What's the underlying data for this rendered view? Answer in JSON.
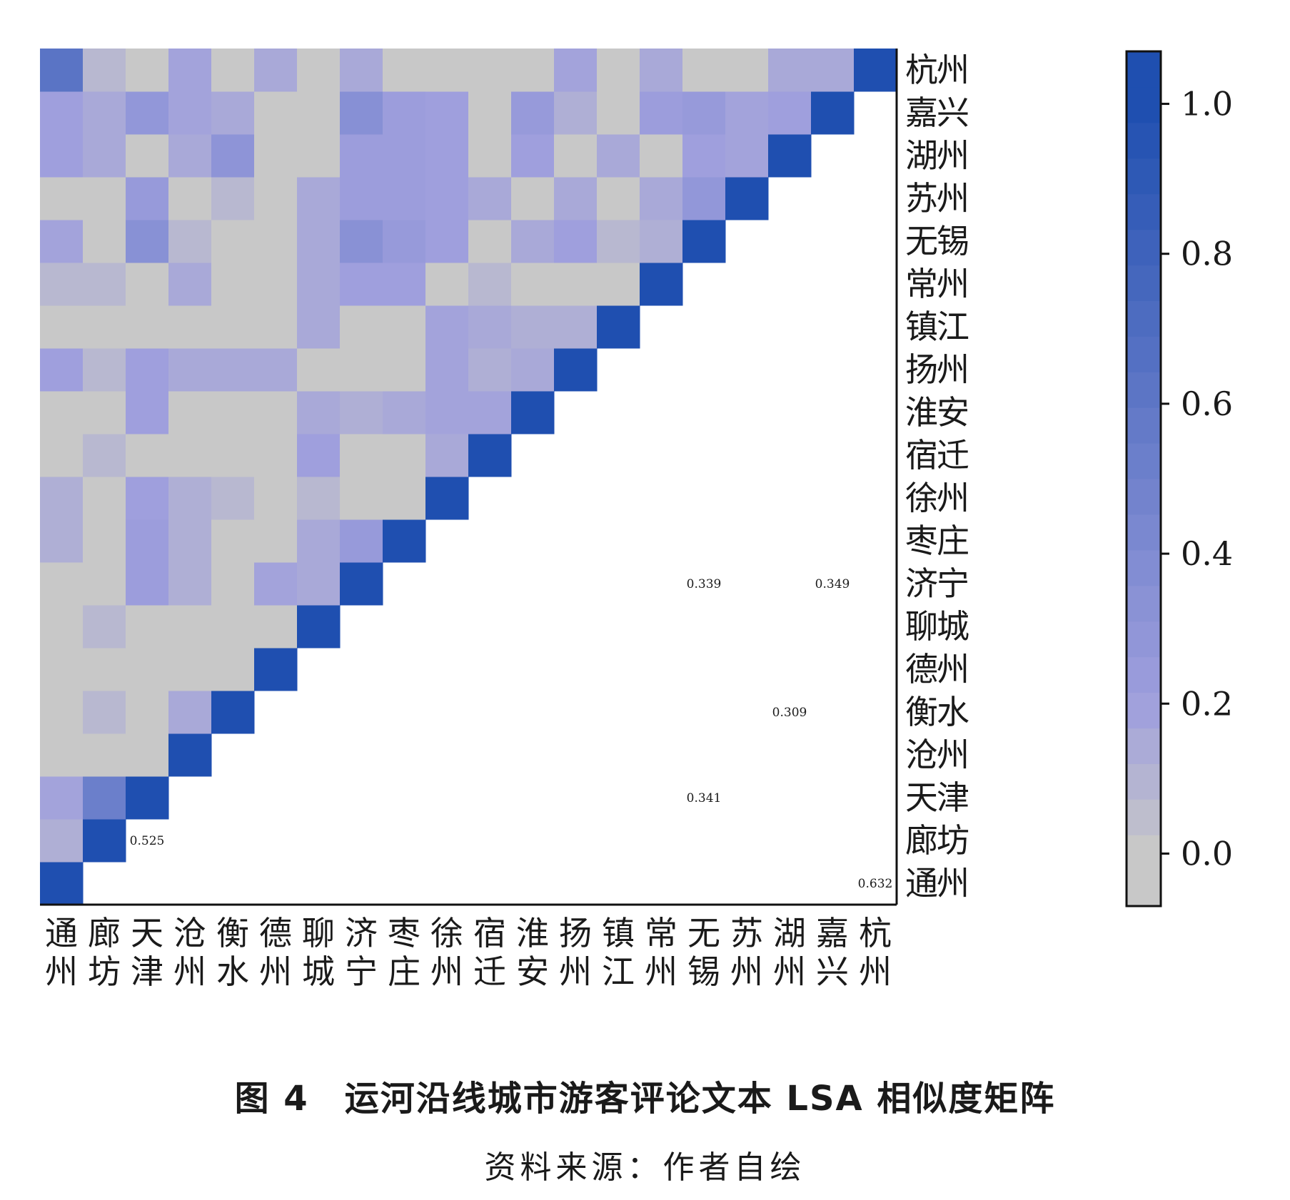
{
  "figure": {
    "title": "图 4　运河沿线城市游客评论文本 LSA 相似度矩阵",
    "source": "资料来源：作者自绘"
  },
  "chart_data": {
    "type": "heatmap",
    "title": "",
    "xlabel": "",
    "ylabel": "",
    "x_categories": [
      "通州",
      "廊坊",
      "天津",
      "沧州",
      "衡水",
      "德州",
      "聊城",
      "济宁",
      "枣庄",
      "徐州",
      "宿迁",
      "淮安",
      "扬州",
      "镇江",
      "常州",
      "无锡",
      "苏州",
      "湖州",
      "嘉兴",
      "杭州"
    ],
    "y_categories_top_to_bottom": [
      "杭州",
      "嘉兴",
      "湖州",
      "苏州",
      "无锡",
      "常州",
      "镇江",
      "扬州",
      "淮安",
      "宿迁",
      "徐州",
      "枣庄",
      "济宁",
      "聊城",
      "德州",
      "衡水",
      "沧州",
      "天津",
      "廊坊",
      "通州"
    ],
    "matrix_lower_triangle": [
      [
        1.0
      ],
      [
        0.12,
        1.0
      ],
      [
        0.18,
        0.525,
        1.0
      ],
      [
        0.0,
        0.0,
        0.0,
        1.0
      ],
      [
        0.0,
        0.08,
        0.0,
        0.15,
        1.0
      ],
      [
        0.0,
        0.0,
        0.0,
        0.0,
        0.0,
        1.0
      ],
      [
        0.0,
        0.08,
        0.0,
        0.0,
        0.0,
        0.0,
        1.0
      ],
      [
        0.0,
        0.0,
        0.22,
        0.12,
        0.0,
        0.18,
        0.15,
        1.0
      ],
      [
        0.12,
        0.0,
        0.22,
        0.12,
        0.0,
        0.0,
        0.15,
        0.25,
        1.0
      ],
      [
        0.12,
        0.0,
        0.2,
        0.12,
        0.08,
        0.0,
        0.08,
        0.0,
        0.0,
        1.0
      ],
      [
        0.0,
        0.08,
        0.0,
        0.0,
        0.0,
        0.0,
        0.2,
        0.0,
        0.0,
        0.15,
        1.0
      ],
      [
        0.0,
        0.0,
        0.2,
        0.0,
        0.0,
        0.0,
        0.15,
        0.12,
        0.15,
        0.18,
        0.18,
        1.0
      ],
      [
        0.2,
        0.08,
        0.2,
        0.15,
        0.15,
        0.15,
        0.0,
        0.0,
        0.0,
        0.18,
        0.12,
        0.15,
        1.0
      ],
      [
        0.0,
        0.0,
        0.0,
        0.0,
        0.0,
        0.0,
        0.15,
        0.0,
        0.0,
        0.18,
        0.15,
        0.12,
        0.12,
        1.0
      ],
      [
        0.08,
        0.08,
        0.0,
        0.15,
        0.0,
        0.0,
        0.15,
        0.2,
        0.2,
        0.0,
        0.08,
        0.0,
        0.0,
        0.0,
        1.0
      ],
      [
        0.18,
        0.0,
        0.341,
        0.08,
        0.0,
        0.0,
        0.15,
        0.339,
        0.25,
        0.2,
        0.0,
        0.15,
        0.2,
        0.08,
        0.12,
        1.0
      ],
      [
        0.0,
        0.0,
        0.25,
        0.0,
        0.08,
        0.0,
        0.15,
        0.22,
        0.22,
        0.2,
        0.15,
        0.0,
        0.15,
        0.0,
        0.15,
        0.28,
        1.0
      ],
      [
        0.2,
        0.15,
        0.0,
        0.15,
        0.309,
        0.0,
        0.0,
        0.22,
        0.22,
        0.2,
        0.0,
        0.2,
        0.0,
        0.15,
        0.0,
        0.2,
        0.18,
        1.0
      ],
      [
        0.2,
        0.15,
        0.28,
        0.18,
        0.15,
        0.0,
        0.0,
        0.349,
        0.22,
        0.2,
        0.0,
        0.25,
        0.12,
        0.0,
        0.22,
        0.25,
        0.18,
        0.2,
        1.0
      ],
      [
        0.632,
        0.08,
        0.0,
        0.18,
        0.0,
        0.15,
        0.0,
        0.15,
        0.0,
        0.0,
        0.0,
        0.0,
        0.18,
        0.0,
        0.15,
        0.0,
        0.0,
        0.15,
        0.15,
        1.0
      ]
    ],
    "annotations": [
      {
        "row": "廊坊",
        "col": "天津",
        "text": "0.525"
      },
      {
        "row": "济宁",
        "col": "无锡",
        "text": "0.339"
      },
      {
        "row": "济宁",
        "col": "嘉兴",
        "text": "0.349"
      },
      {
        "row": "衡水",
        "col": "湖州",
        "text": "0.309"
      },
      {
        "row": "天津",
        "col": "无锡",
        "text": "0.341"
      },
      {
        "row": "通州",
        "col": "杭州",
        "text": "0.632"
      }
    ],
    "colorbar": {
      "range": [
        -0.07,
        1.07
      ],
      "ticks": [
        0.0,
        0.2,
        0.4,
        0.6,
        0.8,
        1.0
      ],
      "tick_labels": [
        "0.0",
        "0.2",
        "0.4",
        "0.6",
        "0.8",
        "1.0"
      ],
      "low_color": "#c8c8c8",
      "mid_color": "#9f9fdd",
      "high_color": "#1f4fb0"
    },
    "grid": false
  }
}
